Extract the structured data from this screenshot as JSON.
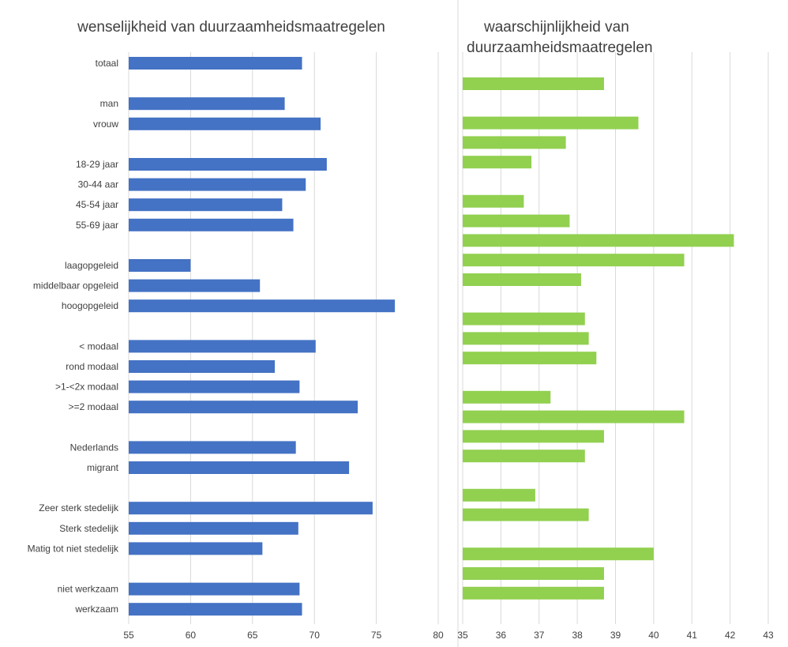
{
  "chart_data": [
    {
      "type": "bar",
      "orientation": "horizontal",
      "title": "wenselijkheid van duurzaamheidsmaatregelen",
      "xlim": [
        55,
        80
      ],
      "xticks": [
        55,
        60,
        65,
        70,
        75,
        80
      ],
      "grid": true,
      "color": "#4472C4",
      "categories": [
        "totaal",
        "man",
        "vrouw",
        "18-29 jaar",
        "30-44 aar",
        "45-54 jaar",
        "55-69 jaar",
        "laagopgeleid",
        "middelbaar opgeleid",
        "hoogopgeleid",
        "< modaal",
        "rond modaal",
        ">1-<2x modaal",
        ">=2 modaal",
        "Nederlands",
        "migrant",
        "Zeer sterk stedelijk",
        "Sterk stedelijk",
        "Matig tot niet stedelijk",
        "niet werkzaam",
        "werkzaam"
      ],
      "values": [
        69.0,
        67.6,
        70.5,
        71.0,
        69.3,
        67.4,
        68.3,
        60.0,
        65.6,
        76.5,
        70.1,
        66.8,
        68.8,
        73.5,
        68.5,
        72.8,
        74.7,
        68.7,
        65.8,
        68.8,
        69.0
      ]
    },
    {
      "type": "bar",
      "orientation": "horizontal",
      "title": "waarschijnlijkheid van duurzaamheidsmaatregelen",
      "xlim": [
        35,
        43
      ],
      "xticks": [
        35,
        36,
        37,
        38,
        39,
        40,
        41,
        42,
        43
      ],
      "grid": true,
      "color": "#92D050",
      "values": [
        38.7,
        39.6,
        37.7,
        36.8,
        36.6,
        37.8,
        42.1,
        40.8,
        38.1,
        38.2,
        38.3,
        38.5,
        37.3,
        40.8,
        38.7,
        38.2,
        36.9,
        38.3,
        40.0,
        38.7,
        38.7
      ]
    }
  ]
}
